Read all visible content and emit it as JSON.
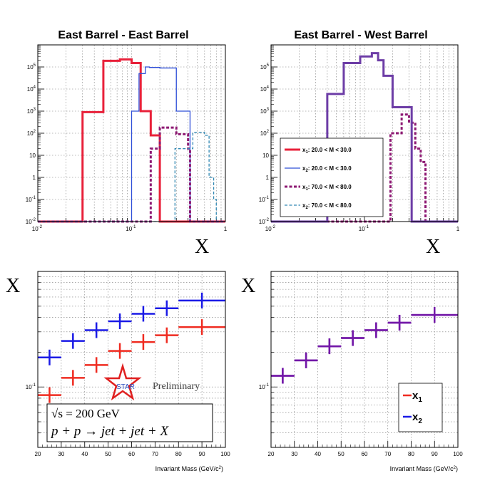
{
  "chart_data": [
    {
      "type": "histogram",
      "title": "East Barrel - East Barrel",
      "xlabel_symbol": "X",
      "x_scale": "log",
      "y_scale": "log",
      "xlim": [
        0.01,
        1
      ],
      "ylim": [
        0.01,
        1000000
      ],
      "x_ticks": [
        "10-2",
        "10-1",
        "1"
      ],
      "y_ticks": [
        "10-2",
        "10-1",
        "1",
        "10",
        "102",
        "103",
        "104",
        "105"
      ],
      "grid": true,
      "series": [
        {
          "name": "x1: 20.0 < M < 30.0",
          "color": "#e8213a",
          "style": "solid",
          "width": 3,
          "bins": [
            [
              0.01,
              0.03,
              0.01
            ],
            [
              0.03,
              0.05,
              900
            ],
            [
              0.05,
              0.075,
              190000
            ],
            [
              0.075,
              0.1,
              220000
            ],
            [
              0.1,
              0.125,
              150000
            ],
            [
              0.125,
              0.16,
              1000
            ],
            [
              0.16,
              0.2,
              80
            ],
            [
              0.2,
              1,
              0.01
            ]
          ]
        },
        {
          "name": "x2: 20.0 < M < 30.0",
          "color": "#2f4fd8",
          "style": "solid",
          "width": 1.3,
          "bins": [
            [
              0.01,
              0.1,
              0.01
            ],
            [
              0.1,
              0.12,
              1000
            ],
            [
              0.12,
              0.14,
              50000
            ],
            [
              0.14,
              0.155,
              100000
            ],
            [
              0.155,
              0.2,
              95000
            ],
            [
              0.2,
              0.3,
              90000
            ],
            [
              0.3,
              0.42,
              1000
            ],
            [
              0.42,
              1,
              0.01
            ]
          ]
        },
        {
          "name": "x1: 70.0 < M < 80.0",
          "color": "#8e1a73",
          "style": "dash",
          "width": 3,
          "bins": [
            [
              0.01,
              0.16,
              0.01
            ],
            [
              0.16,
              0.2,
              20
            ],
            [
              0.2,
              0.3,
              180
            ],
            [
              0.3,
              0.4,
              90
            ],
            [
              0.4,
              0.42,
              20
            ],
            [
              0.42,
              1,
              0.01
            ]
          ]
        },
        {
          "name": "x2: 70.0 < M < 80.0",
          "color": "#3188b3",
          "style": "dash",
          "width": 1.3,
          "bins": [
            [
              0.01,
              0.29,
              0.01
            ],
            [
              0.29,
              0.45,
              20
            ],
            [
              0.45,
              0.6,
              110
            ],
            [
              0.6,
              0.67,
              80
            ],
            [
              0.67,
              0.75,
              1
            ],
            [
              0.75,
              0.8,
              0.1
            ],
            [
              0.8,
              1,
              0.01
            ]
          ]
        }
      ]
    },
    {
      "type": "histogram",
      "title": "East Barrel - West Barrel",
      "xlabel_symbol": "X",
      "x_scale": "log",
      "y_scale": "log",
      "xlim": [
        0.01,
        1
      ],
      "ylim": [
        0.01,
        1000000
      ],
      "x_ticks": [
        "10-2",
        "10-1",
        "1"
      ],
      "y_ticks": [
        "10-2",
        "10-1",
        "1",
        "10",
        "102",
        "103",
        "104",
        "105"
      ],
      "grid": true,
      "legend_position": "left-middle",
      "legend": [
        {
          "sym": "x",
          "sub": "1",
          "range": ": 20.0 < M < 30.0",
          "color": "#e8213a",
          "style": "solid",
          "width": 3
        },
        {
          "sym": "x",
          "sub": "2",
          "range": ": 20.0 < M < 30.0",
          "color": "#2f4fd8",
          "style": "solid",
          "width": 1.3
        },
        {
          "sym": "x",
          "sub": "1",
          "range": ": 70.0 < M < 80.0",
          "color": "#8e1a73",
          "style": "dash",
          "width": 3
        },
        {
          "sym": "x",
          "sub": "2",
          "range": ": 70.0 < M < 80.0",
          "color": "#3188b3",
          "style": "dash",
          "width": 1.3
        }
      ],
      "series": [
        {
          "color": "#8e1a73",
          "style": "dash",
          "width": 3,
          "bins": [
            [
              0.01,
              0.19,
              0.01
            ],
            [
              0.19,
              0.25,
              100
            ],
            [
              0.25,
              0.3,
              700
            ],
            [
              0.3,
              0.35,
              300
            ],
            [
              0.35,
              0.4,
              20
            ],
            [
              0.4,
              0.45,
              5
            ],
            [
              0.45,
              1,
              0.01
            ]
          ]
        },
        {
          "color": "#6d3da6",
          "style": "solid",
          "width": 3,
          "bins": [
            [
              0.01,
              0.04,
              0.01
            ],
            [
              0.04,
              0.06,
              6000
            ],
            [
              0.06,
              0.09,
              150000
            ],
            [
              0.09,
              0.12,
              300000
            ],
            [
              0.12,
              0.14,
              420000
            ],
            [
              0.14,
              0.16,
              200000
            ],
            [
              0.16,
              0.2,
              40000
            ],
            [
              0.2,
              0.32,
              1500
            ],
            [
              0.32,
              1,
              0.01
            ]
          ]
        }
      ]
    },
    {
      "type": "scatter",
      "ylabel_symbol": "X",
      "xlabel": "Invariant Mass (GeV/c2)",
      "x_scale": "linear",
      "y_scale": "log",
      "xlim": [
        20,
        100
      ],
      "ylim": [
        0.03,
        1
      ],
      "x_ticks": [
        "20",
        "30",
        "40",
        "50",
        "60",
        "70",
        "80",
        "90",
        "100"
      ],
      "y_tick_label": "10-1",
      "grid": true,
      "series": [
        {
          "name": "x1",
          "color": "#ef2b20",
          "points": [
            [
              25,
              0.085,
              5
            ],
            [
              35,
              0.12,
              5
            ],
            [
              45,
              0.155,
              5
            ],
            [
              55,
              0.205,
              5
            ],
            [
              65,
              0.245,
              5
            ],
            [
              75,
              0.28,
              5
            ],
            [
              90,
              0.33,
              10
            ]
          ]
        },
        {
          "name": "x2",
          "color": "#1a1ae6",
          "points": [
            [
              25,
              0.18,
              5
            ],
            [
              35,
              0.25,
              5
            ],
            [
              45,
              0.31,
              5
            ],
            [
              55,
              0.37,
              5
            ],
            [
              65,
              0.43,
              5
            ],
            [
              75,
              0.48,
              5
            ],
            [
              90,
              0.56,
              10
            ]
          ]
        }
      ],
      "star_label": "STAR",
      "preliminary_label": "Preliminary",
      "info_line1": "√s = 200 GeV",
      "info_line2": "p + p → jet + jet + X"
    },
    {
      "type": "scatter",
      "ylabel_symbol": "X",
      "xlabel": "Invariant Mass (GeV/c2)",
      "x_scale": "linear",
      "y_scale": "log",
      "xlim": [
        20,
        100
      ],
      "ylim": [
        0.03,
        1
      ],
      "x_ticks": [
        "20",
        "30",
        "40",
        "50",
        "60",
        "70",
        "80",
        "90",
        "100"
      ],
      "y_tick_label": "10-1",
      "grid": true,
      "legend_position": "bottom-right",
      "legend": [
        {
          "sym": "x",
          "sub": "1",
          "color": "#ef2b20"
        },
        {
          "sym": "x",
          "sub": "2",
          "color": "#1a1ae6"
        }
      ],
      "series": [
        {
          "name": "x1",
          "color": "#ef2b20",
          "points": [
            [
              25,
              0.125,
              5
            ],
            [
              35,
              0.17,
              5
            ],
            [
              45,
              0.225,
              5
            ],
            [
              55,
              0.265,
              5
            ],
            [
              65,
              0.31,
              5
            ],
            [
              75,
              0.36,
              5
            ],
            [
              90,
              0.42,
              10
            ]
          ]
        },
        {
          "name": "x2",
          "color": "#1a1ae6",
          "points": [
            [
              25,
              0.125,
              5
            ],
            [
              35,
              0.17,
              5
            ],
            [
              45,
              0.225,
              5
            ],
            [
              55,
              0.265,
              5
            ],
            [
              65,
              0.31,
              5
            ],
            [
              75,
              0.36,
              5
            ],
            [
              90,
              0.42,
              10
            ]
          ]
        }
      ],
      "overlap_color": "#7318a8"
    }
  ]
}
